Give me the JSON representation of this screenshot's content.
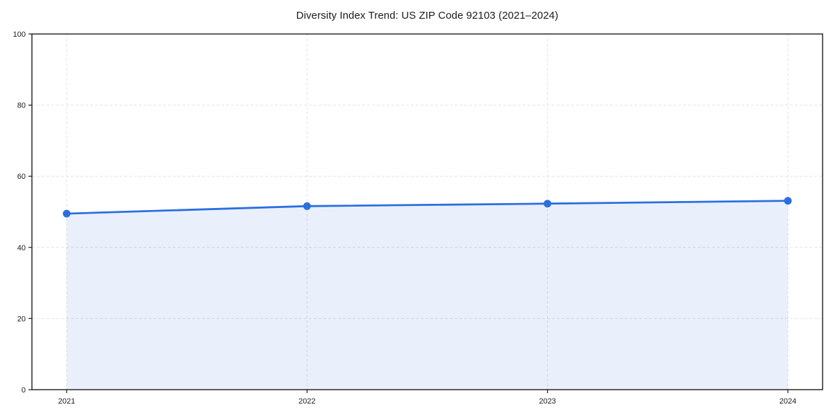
{
  "chart_data": {
    "type": "line",
    "title": "Diversity Index Trend: US ZIP Code 92103 (2021–2024)",
    "categories": [
      "2021",
      "2022",
      "2023",
      "2024"
    ],
    "series": [
      {
        "name": "Diversity Index",
        "values": [
          49.5,
          51.6,
          52.3,
          53.1
        ]
      }
    ],
    "xlabel": "",
    "ylabel": "",
    "ylim": [
      0,
      100
    ],
    "yticks": [
      0,
      20,
      40,
      60,
      80,
      100
    ],
    "grid": "dashed, horizontal and vertical",
    "legend_position": "none",
    "area_fill": true,
    "markers": true,
    "colors": {
      "line": "#2a6fe0",
      "marker": "#2a6fe0",
      "fill_rgba": "rgba(42,111,224,0.10)",
      "grid": "#e2e2e2",
      "axis": "#1a1a1a",
      "text": "#1a1a1a",
      "background": "#ffffff"
    }
  }
}
